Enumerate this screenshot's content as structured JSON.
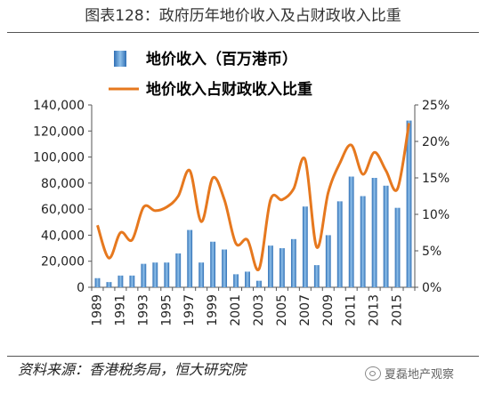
{
  "figure": {
    "title": "图表128：政府历年地价收入及占财政收入比重",
    "source": "资料来源：香港税务局，恒大研究院",
    "watermark": "夏磊地产观察"
  },
  "colors": {
    "bar": "#4f8fd0",
    "line": "#e6781e",
    "axis": "#555555",
    "text": "#222222"
  },
  "chart_data": {
    "type": "bar",
    "years": [
      1989,
      1990,
      1991,
      1992,
      1993,
      1994,
      1995,
      1996,
      1997,
      1998,
      1999,
      2000,
      2001,
      2002,
      2003,
      2004,
      2005,
      2006,
      2007,
      2008,
      2009,
      2010,
      2011,
      2012,
      2013,
      2014,
      2015,
      2016
    ],
    "x_tick_labels": [
      "1989",
      "1991",
      "1993",
      "1995",
      "1997",
      "1999",
      "2001",
      "2003",
      "2005",
      "2007",
      "2009",
      "2011",
      "2013",
      "2015"
    ],
    "series": [
      {
        "name": "地价收入（百万港币）",
        "type": "bar",
        "axis": "left",
        "values": [
          7000,
          4000,
          9000,
          9000,
          18000,
          19000,
          19000,
          26000,
          44000,
          19000,
          35000,
          29000,
          10000,
          12000,
          5000,
          32000,
          30000,
          37000,
          62000,
          17000,
          40000,
          66000,
          85000,
          70000,
          84000,
          78000,
          61000,
          128000
        ]
      },
      {
        "name": "地价收入占财政收入比重",
        "type": "line",
        "axis": "right",
        "values": [
          8.5,
          4.0,
          7.5,
          6.5,
          11.0,
          10.5,
          11.0,
          12.5,
          16.0,
          9.0,
          15.0,
          12.0,
          6.0,
          6.5,
          2.5,
          12.0,
          12.0,
          13.5,
          17.5,
          5.5,
          13.0,
          17.0,
          19.5,
          15.5,
          18.5,
          16.0,
          13.5,
          22.5
        ]
      }
    ],
    "y_left": {
      "min": 0,
      "max": 140000,
      "step": 20000,
      "tick_labels": [
        "0",
        "20,000",
        "40,000",
        "60,000",
        "80,000",
        "100,000",
        "120,000",
        "140,000"
      ]
    },
    "y_right": {
      "min": 0,
      "max": 25,
      "step": 5,
      "tick_labels": [
        "0%",
        "5%",
        "10%",
        "15%",
        "20%",
        "25%"
      ]
    },
    "legend": {
      "placement": "top-left"
    },
    "grid": false
  }
}
